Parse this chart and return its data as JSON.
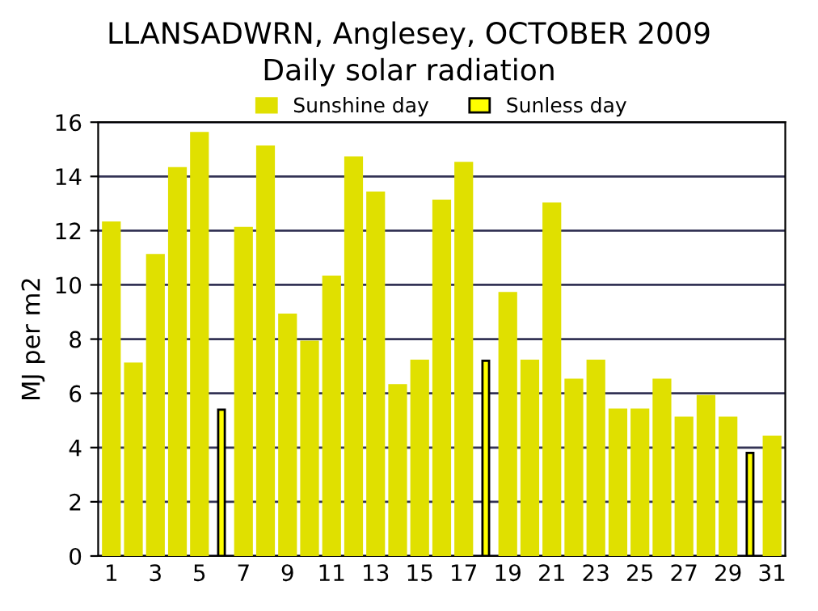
{
  "chart_data": {
    "type": "bar",
    "title": "LLANSADWRN, Anglesey, OCTOBER 2009",
    "subtitle": "Daily solar radiation",
    "ylabel": "MJ per m2",
    "categories": [
      "1",
      null,
      "3",
      null,
      "5",
      null,
      "7",
      null,
      "9",
      null,
      "11",
      null,
      "13",
      null,
      "15",
      null,
      "17",
      null,
      "19",
      null,
      "21",
      null,
      "23",
      null,
      "25",
      null,
      "27",
      null,
      "29",
      null,
      "31"
    ],
    "series": [
      {
        "name": "Sunshine day",
        "color": "#e0e000",
        "values": [
          12.3,
          7.1,
          11.1,
          14.3,
          15.6,
          null,
          12.1,
          15.1,
          8.9,
          7.9,
          10.3,
          14.7,
          13.4,
          6.3,
          7.2,
          13.1,
          14.5,
          null,
          9.7,
          7.2,
          13.0,
          6.5,
          7.2,
          5.4,
          5.4,
          6.5,
          5.1,
          5.9,
          5.1,
          null,
          4.4
        ]
      },
      {
        "name": "Sunless day",
        "color": "#ffff00",
        "values": [
          null,
          null,
          null,
          null,
          null,
          5.4,
          null,
          null,
          null,
          null,
          null,
          null,
          null,
          null,
          null,
          null,
          null,
          7.2,
          null,
          null,
          null,
          null,
          null,
          null,
          null,
          null,
          null,
          null,
          null,
          3.8,
          null
        ]
      }
    ],
    "ylim": [
      0,
      16
    ],
    "yticks": [
      0,
      2,
      4,
      6,
      8,
      10,
      12,
      14,
      16
    ],
    "grid": "y",
    "legend": "top"
  }
}
